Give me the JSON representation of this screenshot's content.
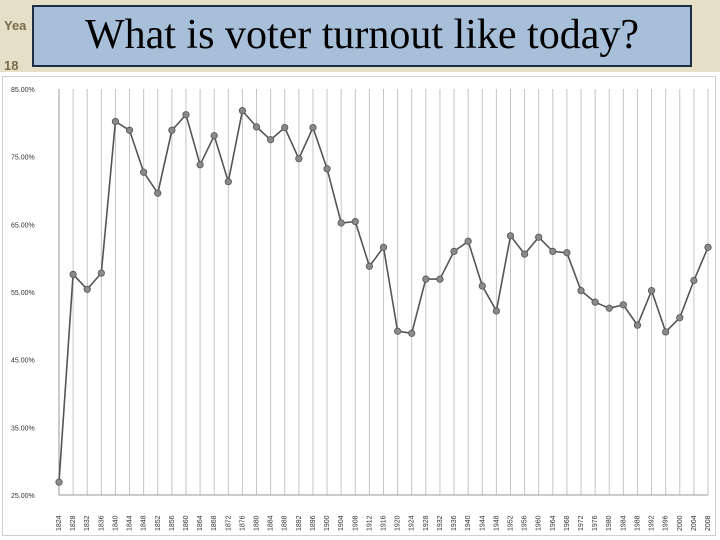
{
  "slide": {
    "title": "What is voter turnout like today?",
    "side_cue_top": "Yea",
    "side_cue_bottom": "18"
  },
  "colors": {
    "title_bg": "#a7bfd8",
    "line": "#555555",
    "marker": "#8a8a8a"
  },
  "chart_data": {
    "type": "line",
    "title": "",
    "xlabel": "",
    "ylabel": "",
    "ylim": [
      25,
      85
    ],
    "grid": {
      "vertical": true,
      "horizontal": false
    },
    "y_ticks": [
      "85.00%",
      "75.00%",
      "65.00%",
      "55.00%",
      "45.00%",
      "35.00%",
      "25.00%"
    ],
    "x": [
      "1824",
      "1828",
      "1832",
      "1836",
      "1840",
      "1844",
      "1848",
      "1852",
      "1856",
      "1860",
      "1864",
      "1868",
      "1872",
      "1876",
      "1880",
      "1884",
      "1888",
      "1892",
      "1896",
      "1900",
      "1904",
      "1908",
      "1912",
      "1916",
      "1920",
      "1924",
      "1928",
      "1932",
      "1936",
      "1940",
      "1944",
      "1948",
      "1952",
      "1956",
      "1960",
      "1964",
      "1968",
      "1972",
      "1976",
      "1980",
      "1984",
      "1988",
      "1992",
      "1996",
      "2000",
      "2004",
      "2008"
    ],
    "series": [
      {
        "values": [
          26.9,
          57.6,
          55.4,
          57.8,
          80.2,
          78.9,
          72.7,
          69.6,
          78.9,
          81.2,
          73.8,
          78.1,
          71.3,
          81.8,
          79.4,
          77.5,
          79.3,
          74.7,
          79.3,
          73.2,
          65.2,
          65.4,
          58.8,
          61.6,
          49.2,
          48.9,
          56.9,
          56.9,
          61.0,
          62.5,
          55.9,
          52.2,
          63.3,
          60.6,
          63.1,
          61.0,
          60.8,
          55.2,
          53.5,
          52.6,
          53.1,
          50.1,
          55.2,
          49.1,
          51.2,
          56.7,
          61.6
        ]
      }
    ]
  }
}
